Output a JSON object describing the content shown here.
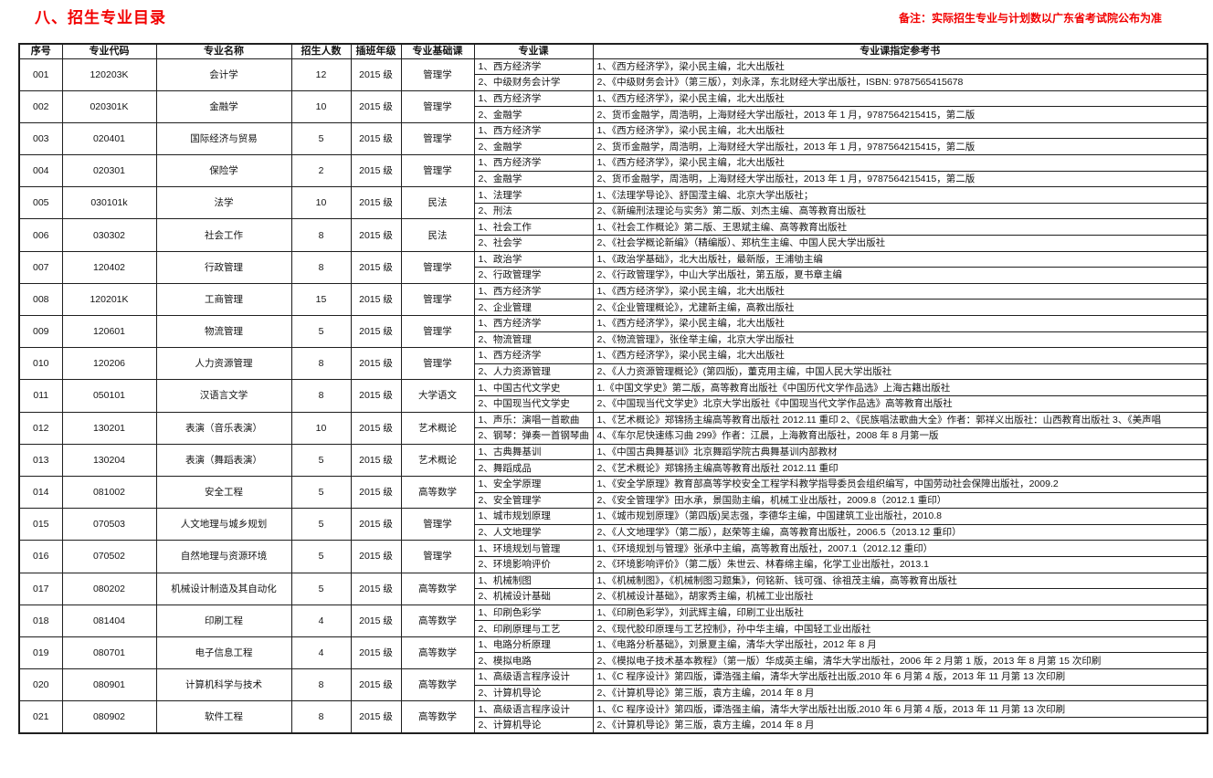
{
  "page": {
    "title": "八、招生专业目录",
    "remark": "备注：实际招生专业与计划数以广东省考试院公布为准"
  },
  "colors": {
    "accent_red": "#f20000",
    "grid_line": "#1f1f1f"
  },
  "table": {
    "headers": [
      "序号",
      "专业代码",
      "专业名称",
      "招生人数",
      "插班年级",
      "专业基础课",
      "专业课",
      "专业课指定参考书"
    ],
    "rows": [
      {
        "no": "001",
        "code": "120203K",
        "major": "会计学",
        "count": "12",
        "grade": "2015 级",
        "basic": "管理学",
        "courses": [
          "1、西方经济学",
          "2、中级财务会计学"
        ],
        "refs": [
          "1、《西方经济学》，梁小民主编，北大出版社",
          "2、《中级财务会计》（第三版），刘永泽，东北财经大学出版社，ISBN: 9787565415678"
        ]
      },
      {
        "no": "002",
        "code": "020301K",
        "major": "金融学",
        "count": "10",
        "grade": "2015 级",
        "basic": "管理学",
        "courses": [
          "1、西方经济学",
          "2、金融学"
        ],
        "refs": [
          "1、《西方经济学》，梁小民主编，北大出版社",
          "2、货币金融学，周浩明，上海财经大学出版社，2013 年 1 月，9787564215415，第二版"
        ]
      },
      {
        "no": "003",
        "code": "020401",
        "major": "国际经济与贸易",
        "count": "5",
        "grade": "2015 级",
        "basic": "管理学",
        "courses": [
          "1、西方经济学",
          "2、金融学"
        ],
        "refs": [
          "1、《西方经济学》，梁小民主编，北大出版社",
          "2、货币金融学，周浩明，上海财经大学出版社，2013 年 1 月，9787564215415，第二版"
        ]
      },
      {
        "no": "004",
        "code": "020301",
        "major": "保险学",
        "count": "2",
        "grade": "2015 级",
        "basic": "管理学",
        "courses": [
          "1、西方经济学",
          "2、金融学"
        ],
        "refs": [
          "1、《西方经济学》，梁小民主编，北大出版社",
          "2、货币金融学，周浩明，上海财经大学出版社，2013 年 1 月，9787564215415，第二版"
        ]
      },
      {
        "no": "005",
        "code": "030101k",
        "major": "法学",
        "count": "10",
        "grade": "2015 级",
        "basic": "民法",
        "courses": [
          "1、法理学",
          "2、刑法"
        ],
        "refs": [
          "1、《法理学导论》、舒国滢主编、北京大学出版社；",
          "2、《新编刑法理论与实务》第二版、刘杰主编、高等教育出版社"
        ]
      },
      {
        "no": "006",
        "code": "030302",
        "major": "社会工作",
        "count": "8",
        "grade": "2015 级",
        "basic": "民法",
        "courses": [
          "1、社会工作",
          "2、社会学"
        ],
        "refs": [
          "1、《社会工作概论》第二版、王思斌主编、高等教育出版社",
          "2、《社会学概论新编》（精编版）、郑杭生主编、中国人民大学出版社"
        ]
      },
      {
        "no": "007",
        "code": "120402",
        "major": "行政管理",
        "count": "8",
        "grade": "2015 级",
        "basic": "管理学",
        "courses": [
          "1、政治学",
          "2、行政管理学"
        ],
        "refs": [
          "1、《政治学基础》，北大出版社，最新版，王浦劬主编",
          "2、《行政管理学》，中山大学出版社，第五版，夏书章主编"
        ]
      },
      {
        "no": "008",
        "code": "120201K",
        "major": "工商管理",
        "count": "15",
        "grade": "2015 级",
        "basic": "管理学",
        "courses": [
          "1、西方经济学",
          "2、企业管理"
        ],
        "refs": [
          "1、《西方经济学》，梁小民主编，北大出版社",
          "2、《企业管理概论》，尤建新主编，高教出版社"
        ]
      },
      {
        "no": "009",
        "code": "120601",
        "major": "物流管理",
        "count": "5",
        "grade": "2015 级",
        "basic": "管理学",
        "courses": [
          "1、西方经济学",
          "2、物流管理"
        ],
        "refs": [
          "1、《西方经济学》，梁小民主编，北大出版社",
          "2、《物流管理》，张佺举主编，北京大学出版社"
        ]
      },
      {
        "no": "010",
        "code": "120206",
        "major": "人力资源管理",
        "count": "8",
        "grade": "2015 级",
        "basic": "管理学",
        "courses": [
          "1、西方经济学",
          "2、人力资源管理"
        ],
        "refs": [
          "1、《西方经济学》，梁小民主编，北大出版社",
          "2、《人力资源管理概论》(第四版)，董克用主编，中国人民大学出版社"
        ]
      },
      {
        "no": "011",
        "code": "050101",
        "major": "汉语言文学",
        "count": "8",
        "grade": "2015 级",
        "basic": "大学语文",
        "courses": [
          "1、中国古代文学史",
          "2、中国现当代文学史"
        ],
        "refs": [
          "1.《中国文学史》第二版，高等教育出版社《中国历代文学作品选》上海古籍出版社",
          "2、《中国现当代文学史》北京大学出版社《中国现当代文学作品选》高等教育出版社"
        ]
      },
      {
        "no": "012",
        "code": "130201",
        "major": "表演（音乐表演）",
        "count": "10",
        "grade": "2015 级",
        "basic": "艺术概论",
        "courses": [
          "1、声乐：演唱一首歌曲",
          "2、钢琴：弹奏一首钢琴曲"
        ],
        "refs": [
          "1、《艺术概论》郑锦扬主编高等教育出版社 2012.11 重印 2、《民族唱法歌曲大全》作者：郭祥义出版社：山西教育出版社 3、《美声唱",
          "4、《车尔尼快速练习曲 299》作者：江晨，上海教育出版社，2008 年 8 月第一版"
        ]
      },
      {
        "no": "013",
        "code": "130204",
        "major": "表演（舞蹈表演）",
        "count": "5",
        "grade": "2015 级",
        "basic": "艺术概论",
        "courses": [
          "1、古典舞基训",
          "2、舞蹈成品"
        ],
        "refs": [
          "1、《中国古典舞基训》北京舞蹈学院古典舞基训内部教材",
          "2、《艺术概论》郑锦扬主编高等教育出版社 2012.11 重印"
        ]
      },
      {
        "no": "014",
        "code": "081002",
        "major": "安全工程",
        "count": "5",
        "grade": "2015 级",
        "basic": "高等数学",
        "courses": [
          "1、安全学原理",
          "2、安全管理学"
        ],
        "refs": [
          "1、《安全学原理》教育部高等学校安全工程学科教学指导委员会组织编写，中国劳动社会保障出版社，2009.2",
          "2、《安全管理学》田水承，景国勋主编，机械工业出版社，2009.8（2012.1 重印）"
        ]
      },
      {
        "no": "015",
        "code": "070503",
        "major": "人文地理与城乡规划",
        "count": "5",
        "grade": "2015 级",
        "basic": "管理学",
        "courses": [
          "1、城市规划原理",
          "2、人文地理学"
        ],
        "refs": [
          "1、《城市规划原理》（第四版)吴志强，李德华主编，中国建筑工业出版社，2010.8",
          "2、《人文地理学》（第二版），赵荣等主编，高等教育出版社，2006.5（2013.12 重印）"
        ]
      },
      {
        "no": "016",
        "code": "070502",
        "major": "自然地理与资源环境",
        "count": "5",
        "grade": "2015 级",
        "basic": "管理学",
        "courses": [
          "1、环境规划与管理",
          "2、环境影响评价"
        ],
        "refs": [
          "1、《环境规划与管理》张承中主编，高等教育出版社，2007.1（2012.12 重印）",
          "2、《环境影响评价》（第二版）朱世云、林春绵主编，化学工业出版社，2013.1"
        ]
      },
      {
        "no": "017",
        "code": "080202",
        "major": "机械设计制造及其自动化",
        "count": "5",
        "grade": "2015 级",
        "basic": "高等数学",
        "courses": [
          "1、机械制图",
          "2、机械设计基础"
        ],
        "refs": [
          "1、《机械制图》，《机械制图习题集》，何铭新、钱可强、徐祖茂主编，高等教育出版社",
          "2、《机械设计基础》，胡家秀主编，机械工业出版社"
        ]
      },
      {
        "no": "018",
        "code": "081404",
        "major": "印刷工程",
        "count": "4",
        "grade": "2015 级",
        "basic": "高等数学",
        "courses": [
          "1、印刷色彩学",
          "2、印刷原理与工艺"
        ],
        "refs": [
          "1、《印刷色彩学》，刘武辉主编，印刷工业出版社",
          "2、《现代胶印原理与工艺控制》，孙中华主编，中国轻工业出版社"
        ]
      },
      {
        "no": "019",
        "code": "080701",
        "major": "电子信息工程",
        "count": "4",
        "grade": "2015 级",
        "basic": "高等数学",
        "courses": [
          "1、电路分析原理",
          "2、模拟电路"
        ],
        "refs": [
          "1、《电路分析基础》，刘景夏主编，清华大学出版社，2012 年 8 月",
          "2、《模拟电子技术基本教程》（第一版）华成英主编，清华大学出版社，2006 年 2 月第 1 版，2013 年 8 月第 15 次印刷"
        ]
      },
      {
        "no": "020",
        "code": "080901",
        "major": "计算机科学与技术",
        "count": "8",
        "grade": "2015 级",
        "basic": "高等数学",
        "courses": [
          "1、高级语言程序设计",
          "2、计算机导论"
        ],
        "refs": [
          "1、《C 程序设计》第四版，谭浩强主编，清华大学出版社出版,2010 年 6 月第 4 版，2013 年 11 月第 13 次印刷",
          "2、《计算机导论》第三版，袁方主编，2014 年 8 月"
        ]
      },
      {
        "no": "021",
        "code": "080902",
        "major": "软件工程",
        "count": "8",
        "grade": "2015 级",
        "basic": "高等数学",
        "courses": [
          "1、高级语言程序设计",
          "2、计算机导论"
        ],
        "refs": [
          "1、《C 程序设计》第四版，谭浩强主编，清华大学出版社出版,2010 年 6 月第 4 版，2013 年 11 月第 13 次印刷",
          "2、《计算机导论》第三版，袁方主编，2014 年 8 月"
        ]
      }
    ]
  }
}
